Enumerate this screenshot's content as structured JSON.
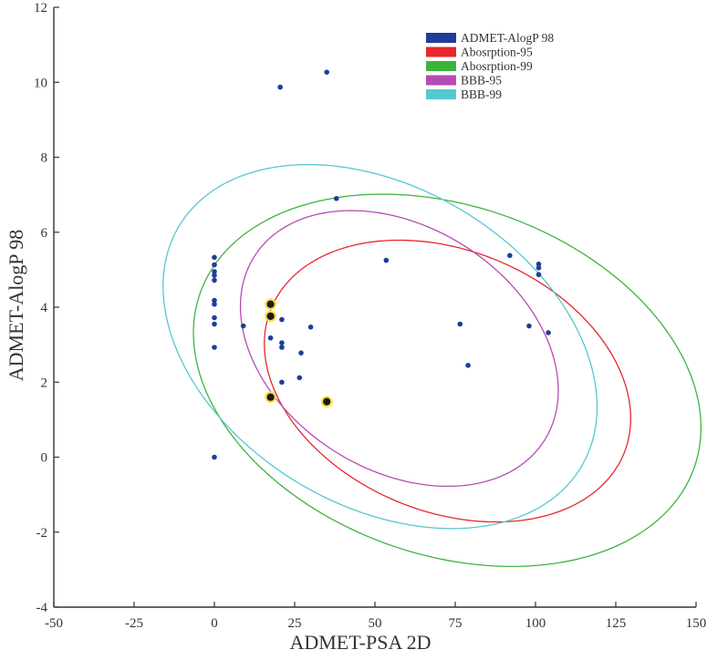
{
  "chart_data": {
    "type": "scatter",
    "xlabel": "ADMET-PSA 2D",
    "ylabel": "ADMET-AlogP 98",
    "xlim": [
      -50,
      150
    ],
    "ylim": [
      -4,
      12
    ],
    "xticks": [
      -50,
      -25,
      0,
      25,
      50,
      75,
      100,
      125,
      150
    ],
    "yticks": [
      -4,
      -2,
      0,
      2,
      4,
      6,
      8,
      10,
      12
    ],
    "legend": {
      "placement": "top-right",
      "entries": [
        {
          "label": "ADMET-AlogP 98",
          "color": "#1f3d99"
        },
        {
          "label": "Abosrption-95",
          "color": "#e8262c"
        },
        {
          "label": "Abosrption-99",
          "color": "#3cb43c"
        },
        {
          "label": "BBB-95",
          "color": "#b44cb4"
        },
        {
          "label": "BBB-99",
          "color": "#55c8d2"
        }
      ]
    },
    "points": [
      {
        "x": 20.5,
        "y": 9.87
      },
      {
        "x": 35,
        "y": 10.27
      },
      {
        "x": 38,
        "y": 6.9
      },
      {
        "x": 53.5,
        "y": 5.25
      },
      {
        "x": 0,
        "y": 5.33
      },
      {
        "x": 0,
        "y": 5.13
      },
      {
        "x": 0,
        "y": 4.95
      },
      {
        "x": 0,
        "y": 4.85
      },
      {
        "x": 0,
        "y": 4.72
      },
      {
        "x": 0,
        "y": 4.18
      },
      {
        "x": 0,
        "y": 4.08
      },
      {
        "x": 0,
        "y": 3.72
      },
      {
        "x": 0,
        "y": 3.55
      },
      {
        "x": 0,
        "y": 2.93
      },
      {
        "x": 0,
        "y": 0.0
      },
      {
        "x": 9,
        "y": 3.5
      },
      {
        "x": 17.5,
        "y": 3.18
      },
      {
        "x": 21,
        "y": 3.67
      },
      {
        "x": 21,
        "y": 3.05
      },
      {
        "x": 21,
        "y": 2.93
      },
      {
        "x": 21,
        "y": 2.0
      },
      {
        "x": 27,
        "y": 2.78
      },
      {
        "x": 30,
        "y": 3.47
      },
      {
        "x": 26.5,
        "y": 2.12
      },
      {
        "x": 76.5,
        "y": 3.55
      },
      {
        "x": 79,
        "y": 2.45
      },
      {
        "x": 92,
        "y": 5.38
      },
      {
        "x": 101,
        "y": 5.15
      },
      {
        "x": 101,
        "y": 5.05
      },
      {
        "x": 101,
        "y": 4.87
      },
      {
        "x": 98,
        "y": 3.5
      },
      {
        "x": 104,
        "y": 3.32
      }
    ],
    "highlighted_points": [
      {
        "x": 17.5,
        "y": 4.08
      },
      {
        "x": 17.5,
        "y": 3.76
      },
      {
        "x": 17.5,
        "y": 1.6
      },
      {
        "x": 35,
        "y": 1.48
      }
    ],
    "ellipses": [
      {
        "name": "Abosrption-95",
        "color": "#e8262c",
        "cx": 72.6,
        "cy": 2.03,
        "rx": 59.4,
        "ry": 3.48,
        "angle_deg": -22.5
      },
      {
        "name": "Abosrption-99",
        "color": "#3cb43c",
        "cx": 72.5,
        "cy": 2.05,
        "rx": 81.6,
        "ry": 4.65,
        "angle_deg": -19.5
      },
      {
        "name": "BBB-95",
        "color": "#b44cb4",
        "cx": 57.6,
        "cy": 2.9,
        "rx": 53.5,
        "ry": 3.24,
        "angle_deg": -32.5
      },
      {
        "name": "BBB-99",
        "color": "#55c8d2",
        "cx": 51.6,
        "cy": 2.95,
        "rx": 73.0,
        "ry": 4.24,
        "angle_deg": -31
      }
    ]
  }
}
